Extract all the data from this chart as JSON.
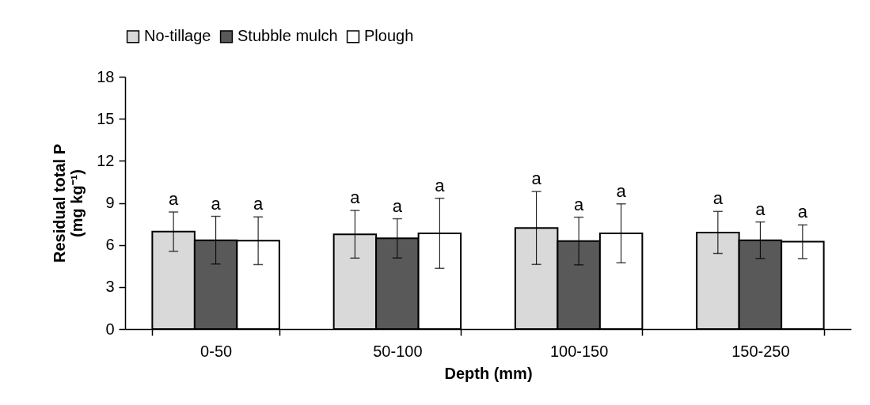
{
  "chart_data": {
    "type": "bar",
    "xlabel": "Depth (mm)",
    "ylabel": "Residual total P\n(mg kg⁻¹)",
    "categories": [
      "0-50",
      "50-100",
      "100-150",
      "150-250"
    ],
    "series": [
      {
        "name": "No-tillage",
        "color": "#d9d9d9",
        "values": [
          6.95,
          6.76,
          7.21,
          6.89
        ],
        "errors": [
          1.4,
          1.7,
          2.6,
          1.5
        ],
        "value_labels": [
          "a",
          "a",
          "a",
          "a"
        ]
      },
      {
        "name": "Stubble mulch",
        "color": "#595959",
        "values": [
          6.34,
          6.47,
          6.28,
          6.34
        ],
        "errors": [
          1.7,
          1.4,
          1.7,
          1.3
        ],
        "value_labels": [
          "a",
          "a",
          "a",
          "a"
        ]
      },
      {
        "name": "Plough",
        "color": "#ffffff",
        "values": [
          6.3,
          6.83,
          6.83,
          6.23
        ],
        "errors": [
          1.7,
          2.5,
          2.1,
          1.2
        ],
        "value_labels": [
          "a",
          "a",
          "a",
          "a"
        ]
      }
    ],
    "ylim": [
      0,
      18
    ],
    "yticks": [
      0,
      3,
      6,
      9,
      12,
      15,
      18
    ],
    "grid": false,
    "legend": "top"
  }
}
